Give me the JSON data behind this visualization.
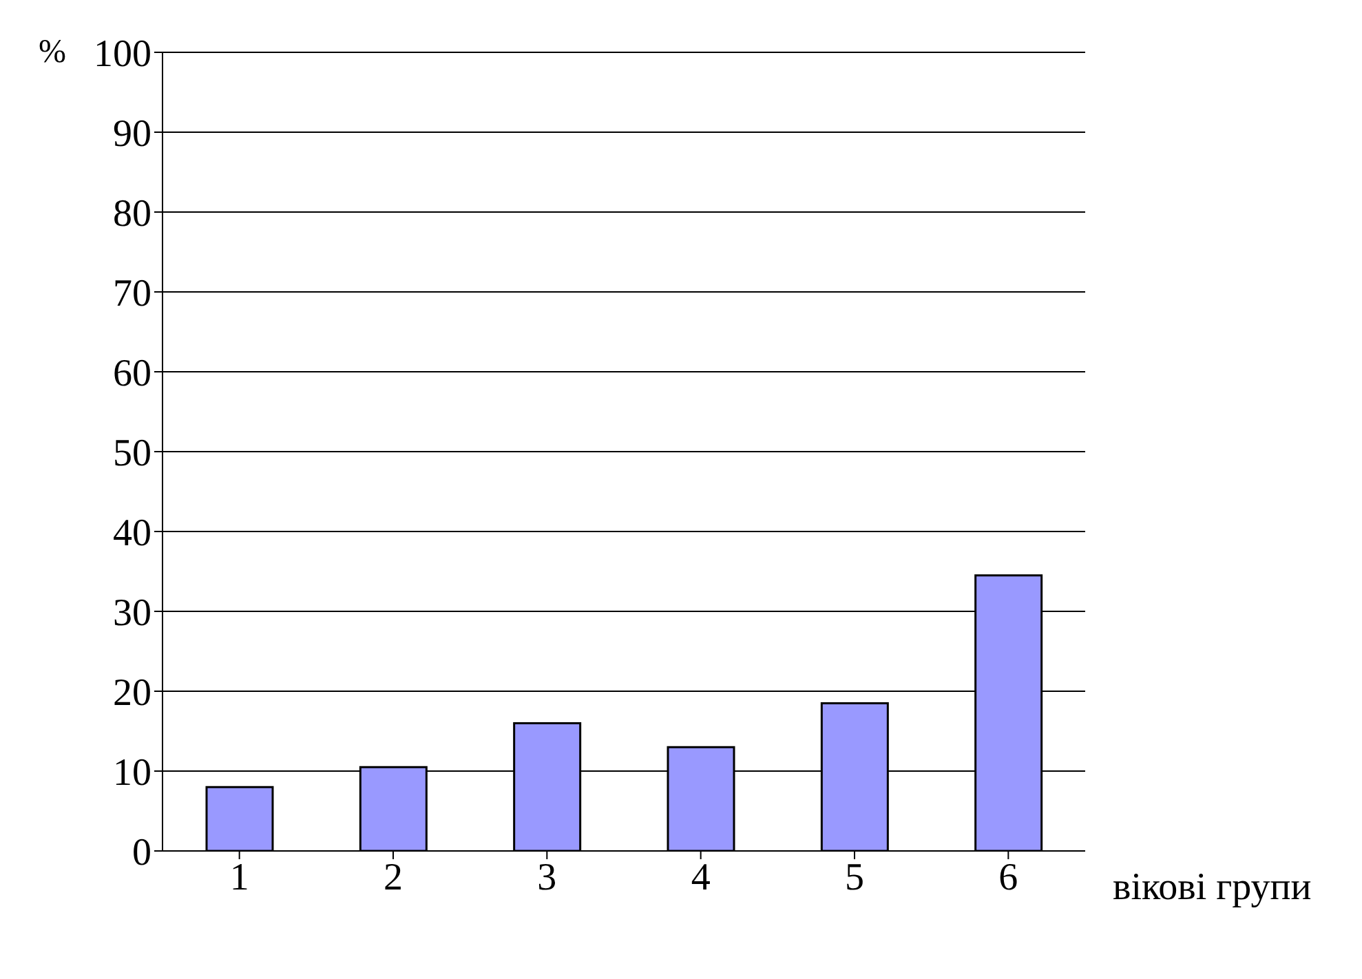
{
  "chart_data": {
    "type": "bar",
    "ylabel": "%",
    "xlabel": "вікові групи",
    "categories": [
      "1",
      "2",
      "3",
      "4",
      "5",
      "6"
    ],
    "values": [
      8,
      10.5,
      16,
      13,
      18.5,
      34.5
    ],
    "color": "#9999ff",
    "ylim": [
      0,
      100
    ],
    "yticks": [
      0,
      10,
      20,
      30,
      40,
      50,
      60,
      70,
      80,
      90,
      100
    ],
    "grid": "y"
  }
}
